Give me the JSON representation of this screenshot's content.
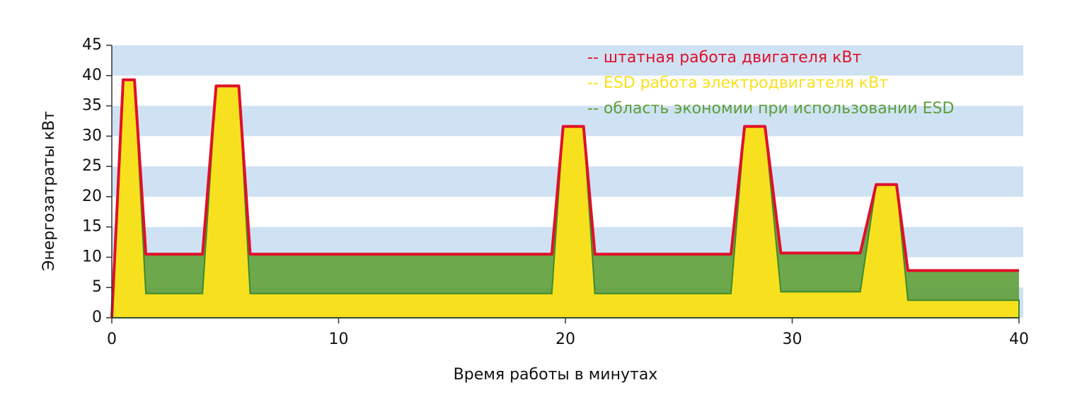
{
  "chart_data": {
    "type": "area",
    "x_label": "Время работы в минутах",
    "y_label": "Энергозатраты  кВт",
    "x": [
      0,
      0.5,
      1.0,
      1.5,
      4.0,
      4.6,
      5.6,
      6.1,
      19.4,
      19.9,
      20.8,
      21.3,
      27.3,
      27.9,
      28.8,
      29.5,
      33.0,
      33.7,
      34.6,
      35.1,
      40
    ],
    "series": [
      {
        "name": "-- штатная работа двигателя кВт",
        "color": "#e0102a",
        "values": [
          0,
          39.3,
          39.3,
          10.5,
          10.5,
          38.3,
          38.3,
          10.5,
          10.5,
          31.6,
          31.6,
          10.5,
          10.5,
          31.6,
          31.6,
          10.7,
          10.7,
          22,
          22,
          7.8,
          7.8
        ]
      },
      {
        "name": "-- ESD работа электродвигателя кВт",
        "color": "#f7e11e",
        "values": [
          0,
          39.3,
          39.3,
          4,
          4,
          38.3,
          38.3,
          4,
          4,
          31.6,
          31.6,
          4,
          4,
          31.6,
          31.6,
          4.3,
          4.3,
          22,
          22,
          2.9,
          2.9
        ]
      }
    ],
    "fill_between": {
      "name": "-- область экономии при использовании ESD",
      "color": "#5e9e3a"
    },
    "xlim": [
      0,
      40
    ],
    "xticks": [
      0,
      10,
      20,
      30,
      40
    ],
    "ylim": [
      0,
      45
    ],
    "yticks": [
      0,
      5,
      10,
      15,
      20,
      25,
      30,
      35,
      40,
      45
    ],
    "stripes": true
  }
}
